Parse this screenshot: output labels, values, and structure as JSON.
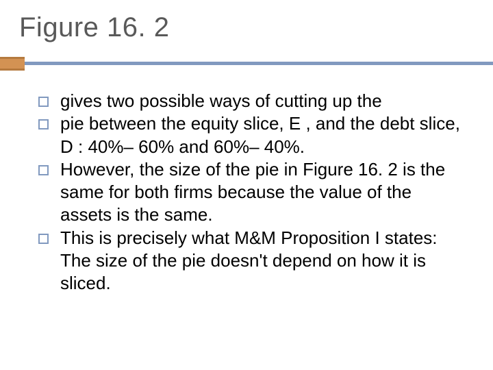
{
  "title": "Figure 16. 2",
  "colors": {
    "title_text": "#595959",
    "body_text": "#000000",
    "orange_block_fill": "#d39253",
    "orange_block_border": "#b57a3e",
    "blue_accent": "#8199bf",
    "background": "#ffffff"
  },
  "typography": {
    "title_fontsize": 40,
    "body_fontsize": 26,
    "font_family": "Arial"
  },
  "bullets": [
    "gives two possible ways of cutting up the",
    "pie between the equity slice, E  , and the debt slice, D  : 40%– 60% and 60%– 40%.",
    " However, the size of the pie in Figure 16. 2 is the same for both firms because the value of the assets is the same.",
    "This is precisely what M&M Proposition I states: The size of the pie doesn't depend on how it is sliced."
  ]
}
